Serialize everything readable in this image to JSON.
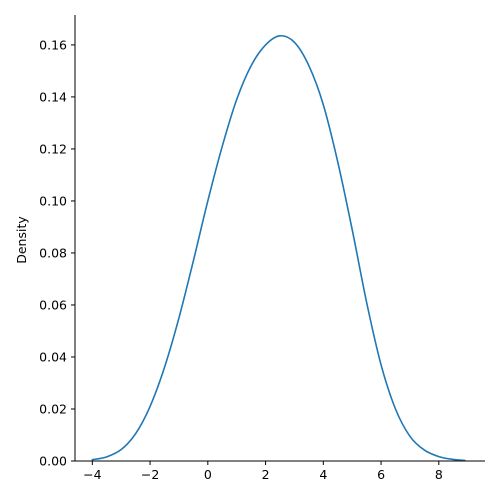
{
  "chart_data": {
    "type": "line",
    "title": "",
    "xlabel": "",
    "ylabel": "Density",
    "xlim": [
      -4.6,
      9.6
    ],
    "ylim": [
      0,
      0.1715
    ],
    "x_ticks": [
      -4,
      -2,
      0,
      2,
      4,
      6,
      8
    ],
    "y_ticks": [
      0.0,
      0.02,
      0.04,
      0.06,
      0.08,
      0.1,
      0.12,
      0.14,
      0.16
    ],
    "x_tick_labels": [
      "−4",
      "−2",
      "0",
      "2",
      "4",
      "6",
      "8"
    ],
    "y_tick_labels": [
      "0.00",
      "0.02",
      "0.04",
      "0.06",
      "0.08",
      "0.10",
      "0.12",
      "0.14",
      "0.16"
    ],
    "grid": false,
    "spines": "left-bottom",
    "line_color": "#1f77b4",
    "series": [
      {
        "x": [
          -4.0,
          -3.5,
          -3.0,
          -2.5,
          -2.0,
          -1.5,
          -1.0,
          -0.5,
          0.0,
          0.5,
          1.0,
          1.5,
          2.0,
          2.5,
          3.0,
          3.5,
          4.0,
          4.5,
          5.0,
          5.5,
          6.0,
          6.5,
          7.0,
          7.5,
          8.0,
          8.5,
          8.9
        ],
        "values": [
          0.0005,
          0.0016,
          0.0044,
          0.0105,
          0.021,
          0.036,
          0.055,
          0.077,
          0.1,
          0.121,
          0.139,
          0.152,
          0.16,
          0.1635,
          0.161,
          0.152,
          0.137,
          0.115,
          0.089,
          0.061,
          0.037,
          0.02,
          0.0095,
          0.0042,
          0.0017,
          0.0006,
          0.0002
        ]
      }
    ]
  }
}
